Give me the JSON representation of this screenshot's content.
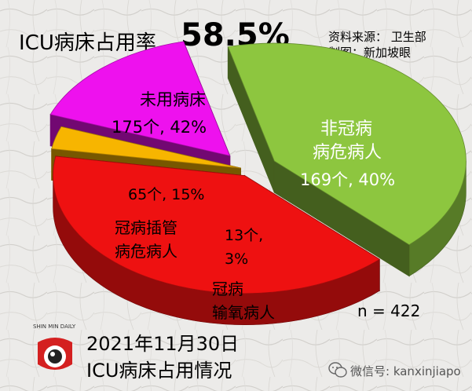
{
  "header": {
    "title": "ICU病床占用率",
    "headline_value": "58.5%",
    "source_line": "资料来源： 卫生部",
    "credit_line": "制图：新加坡眼"
  },
  "footer": {
    "date": "2021年11月30日",
    "subtitle": "ICU病床占用情况",
    "sample_size": "n = 422",
    "wechat_id": "微信号: kanxinjiapo",
    "logo_text": "SHIN MIN DAILY"
  },
  "chart_data": {
    "type": "pie",
    "title": "ICU病床占用率",
    "total": 422,
    "slices": [
      {
        "label": "未用病床",
        "count": 175,
        "percent": 42,
        "value_label": "175个, 42%",
        "color": "#8dc63f",
        "label_color": "#000000"
      },
      {
        "label": "非冠病病危病人",
        "label_lines": [
          "非冠病",
          "病危病人"
        ],
        "count": 169,
        "percent": 40,
        "value_label": "169个, 40%",
        "color": "#ee1111",
        "label_color": "#ffffff"
      },
      {
        "label": "冠病输氧病人",
        "label_lines": [
          "冠病",
          "输氧病人"
        ],
        "count": 13,
        "percent": 3,
        "value_label_lines": [
          "13个,",
          "3%"
        ],
        "color": "#f7b500",
        "label_color": "#000000"
      },
      {
        "label": "冠病插管病危病人",
        "label_lines": [
          "冠病插管",
          "病危病人"
        ],
        "count": 65,
        "percent": 15,
        "value_label": "65个, 15%",
        "color": "#ee11ee",
        "label_color": "#000000"
      }
    ]
  },
  "colors": {
    "background": "#ecebe9",
    "green": "#8dc63f",
    "red": "#ee1111",
    "yellow": "#f7b500",
    "magenta": "#ee11ee"
  }
}
